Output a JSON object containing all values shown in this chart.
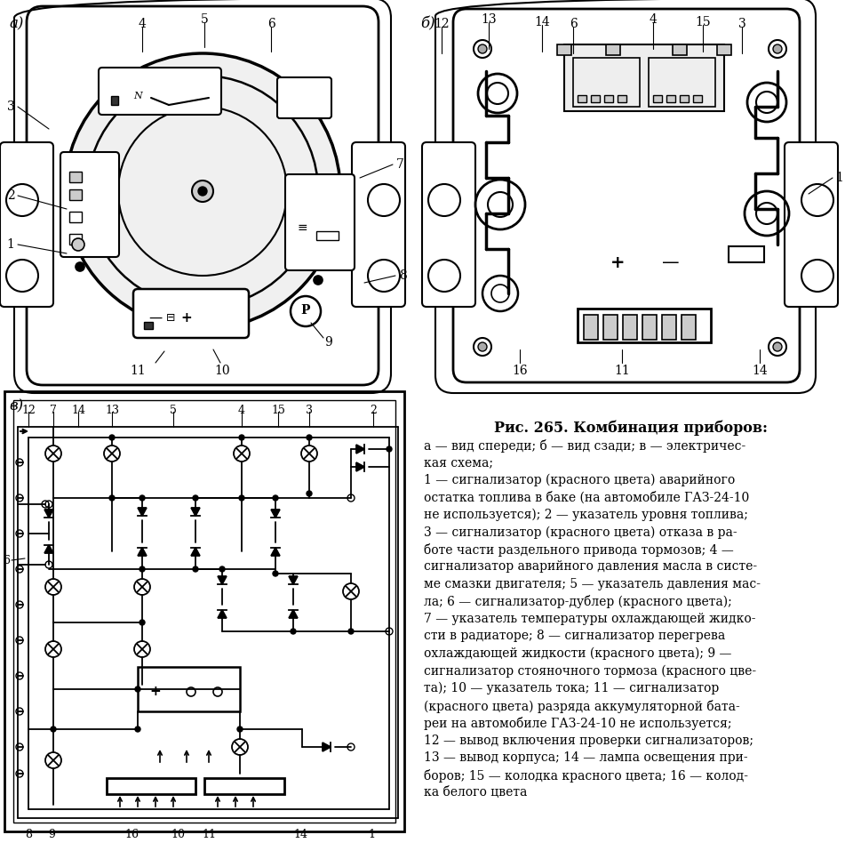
{
  "bg_color": "#ffffff",
  "fig_width": 9.6,
  "fig_height": 9.48,
  "caption_title": "Рис. 265. Комбинация приборов:",
  "caption_lines": [
    "а — вид спереди; б — вид сзади; в — электричес-",
    "кая схема;",
    "1 — сигнализатор (красного цвета) аварийного",
    "остатка топлива в баке (на автомобиле ГАЗ-24-10",
    "не используется); 2 — указатель уровня топлива;",
    "3 — сигнализатор (красного цвета) отказа в ра-",
    "боте части раздельного привода тормозов; 4 —",
    "сигнализатор аварийного давления масла в систе-",
    "ме смазки двигателя; 5 — указатель давления мас-",
    "ла; 6 — сигнализатор-дублер (красного цвета);",
    "7 — указатель температуры охлаждающей жидко-",
    "сти в радиаторе; 8 — сигнализатор перегрева",
    "охлаждающей жидкости (красного цвета); 9 —",
    "сигнализатор стояночного тормоза (красного цве-",
    "та); 10 — указатель тока; 11 — сигнализатор",
    "(красного цвета) разряда аккумуляторной бата-",
    "реи на автомобиле ГАЗ-24-10 не используется;",
    "12 — вывод включения проверки сигнализаторов;",
    "13 — вывод корпуса; 14 — лампа освещения при-",
    "боров; 15 — колодка красного цвета; 16 — колод-",
    "ка белого цвета"
  ]
}
